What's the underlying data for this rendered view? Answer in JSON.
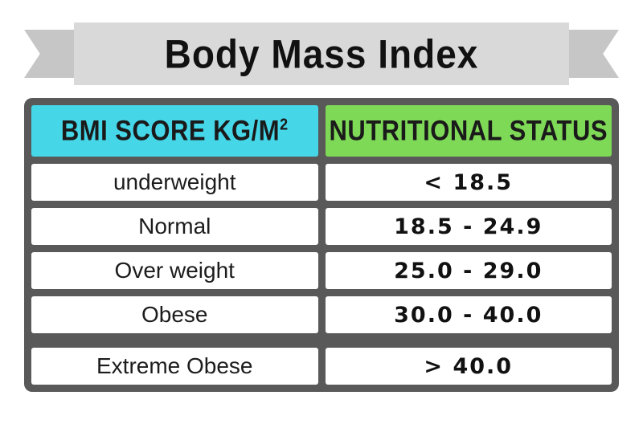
{
  "banner": {
    "title": "Body Mass Index"
  },
  "table": {
    "headers": {
      "bmi": {
        "label": "BMI SCORE KG/M",
        "sup": "2"
      },
      "status": {
        "label": "NUTRITIONAL STATUS"
      }
    },
    "rows": [
      {
        "category": "underweight",
        "value": "< 18.5"
      },
      {
        "category": "Normal",
        "value": "18.5 - 24.9"
      },
      {
        "category": "Over weight",
        "value": "25.0 - 29.0"
      },
      {
        "category": "Obese",
        "value": "30.0 - 40.0"
      },
      {
        "category": "Extreme Obese",
        "value": "> 40.0"
      }
    ]
  },
  "colors": {
    "ribbon_band": "#d9d9d9",
    "ribbon_tail": "#c6c6c6",
    "table_border": "#595959",
    "header_bmi_bg": "#45d6e8",
    "header_status_bg": "#7ed957",
    "cell_bg": "#ffffff",
    "text": "#111111"
  },
  "chart_data": {
    "type": "table",
    "title": "Body Mass Index",
    "columns": [
      "BMI SCORE KG/M2",
      "NUTRITIONAL STATUS"
    ],
    "rows": [
      [
        "underweight",
        "< 18.5"
      ],
      [
        "Normal",
        "18.5 - 24.9"
      ],
      [
        "Over weight",
        "25.0 - 29.0"
      ],
      [
        "Obese",
        "30.0 - 40.0"
      ],
      [
        "Extreme Obese",
        "> 40.0"
      ]
    ]
  }
}
